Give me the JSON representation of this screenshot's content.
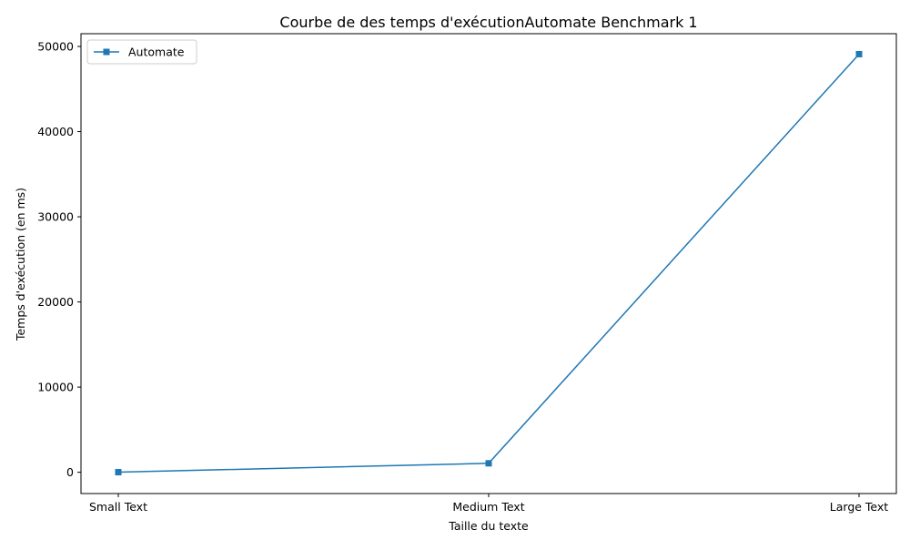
{
  "chart_data": {
    "type": "line",
    "title": "Courbe de des temps d'exécutionAutomate Benchmark 1",
    "xlabel": "Taille du texte",
    "ylabel": "Temps d'exécution (en ms)",
    "categories": [
      "Small Text",
      "Medium Text",
      "Large Text"
    ],
    "series": [
      {
        "name": "Automate",
        "values": [
          10,
          1050,
          49100
        ],
        "color": "#1f77b4",
        "marker": "square"
      }
    ],
    "ylim": [
      -2500,
      51500
    ],
    "yticks": [
      0,
      10000,
      20000,
      30000,
      40000,
      50000
    ],
    "grid": false,
    "legend": "top-left"
  }
}
